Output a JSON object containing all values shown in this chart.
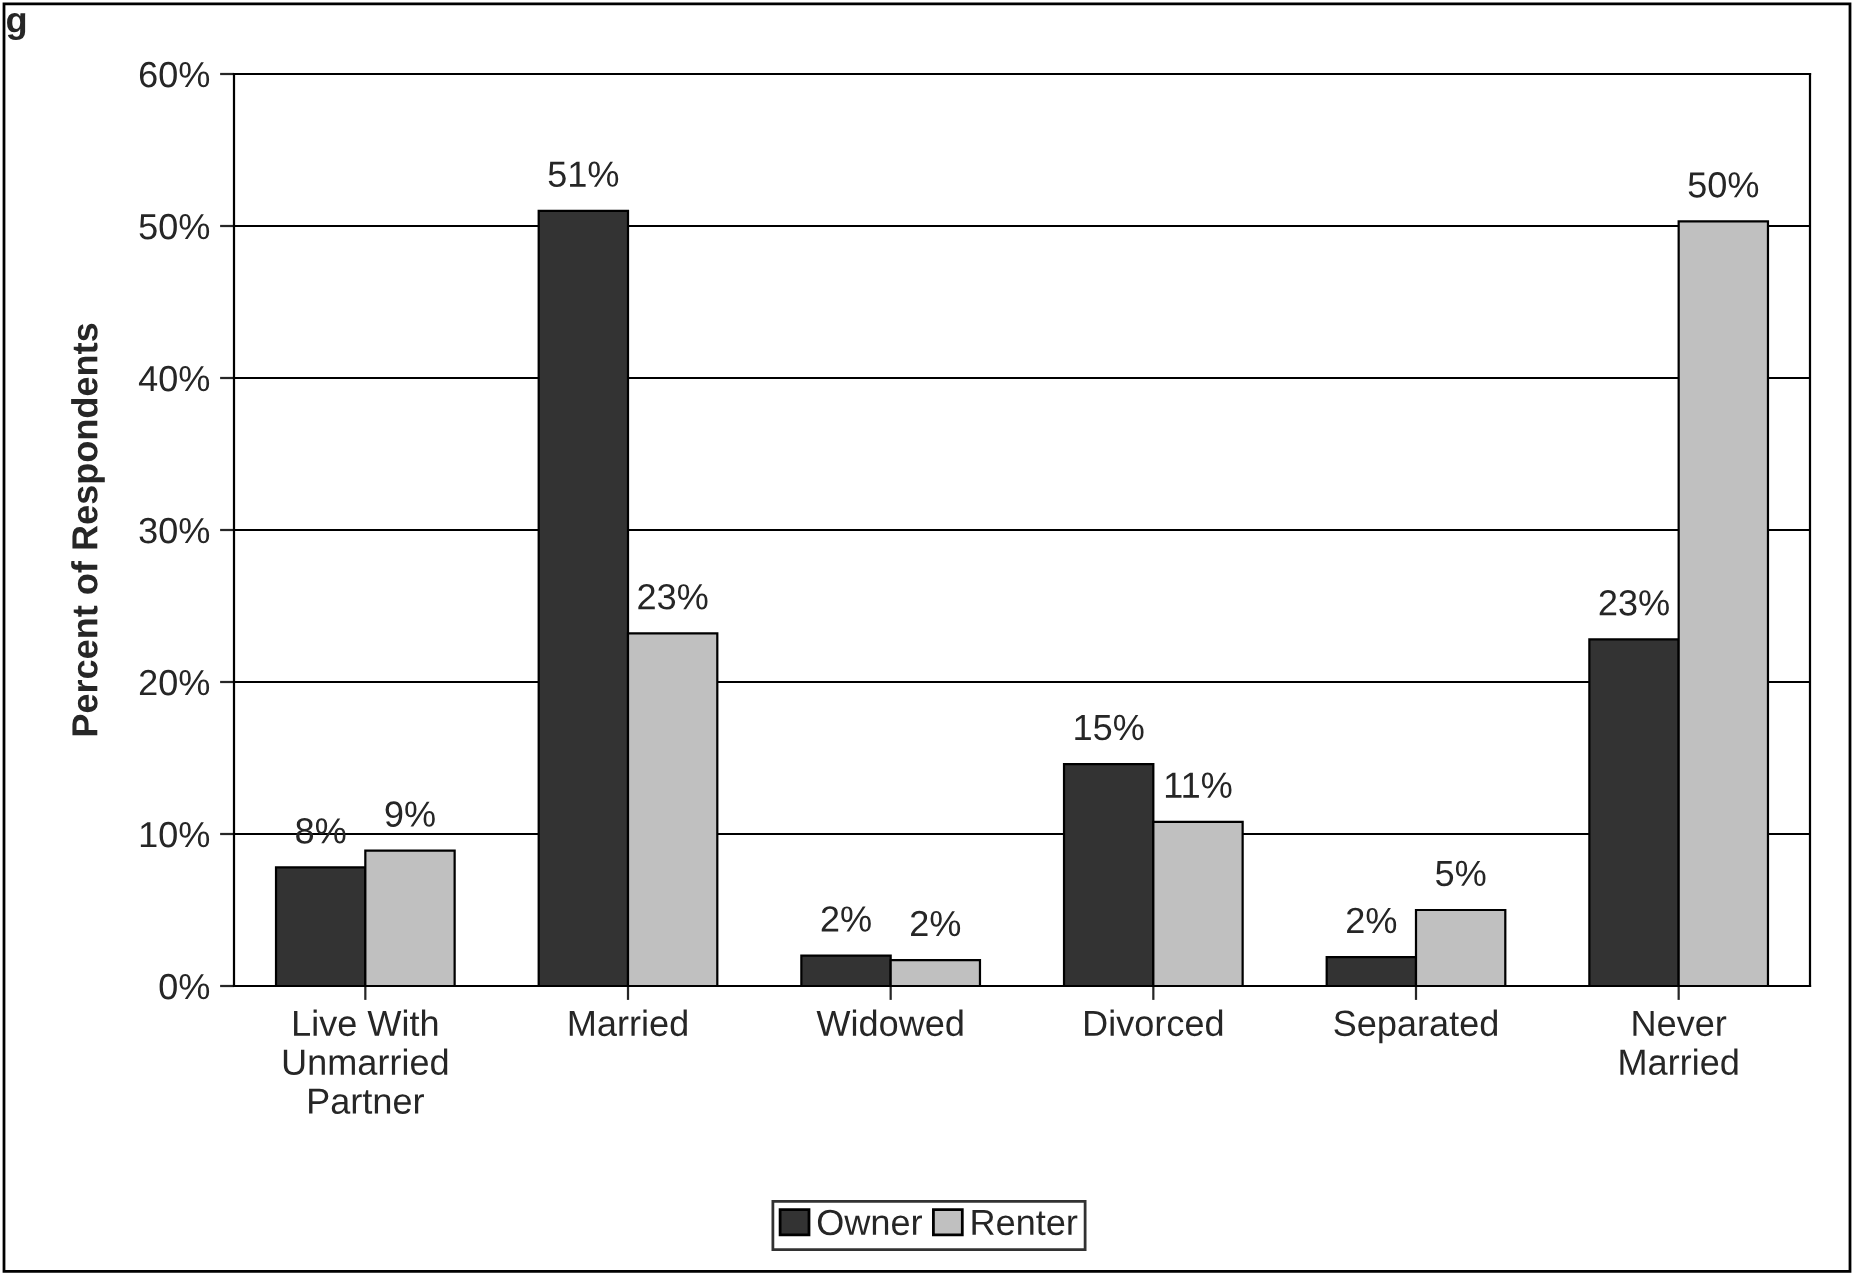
{
  "chart_data": {
    "type": "bar",
    "ylabel": "Percent of Respondents",
    "categories": [
      "Live With\nUnmarried\nPartner",
      "Married",
      "Widowed",
      "Divorced",
      "Separated",
      "Never\nMarried"
    ],
    "series": [
      {
        "name": "Owner",
        "color": "#333333",
        "values": [
          7.8,
          51.0,
          2.0,
          14.6,
          1.9,
          22.8
        ],
        "value_labels": [
          "8%",
          "51%",
          "2%",
          "15%",
          "2%",
          "23%"
        ]
      },
      {
        "name": "Renter",
        "color": "#c0c0c0",
        "values": [
          8.9,
          23.2,
          1.7,
          10.8,
          5.0,
          50.3
        ],
        "value_labels": [
          "9%",
          "23%",
          "2%",
          "11%",
          "5%",
          "50%"
        ]
      }
    ],
    "ylim": [
      0,
      60
    ],
    "yticks": [
      {
        "value": 0,
        "label": "0%"
      },
      {
        "value": 10,
        "label": "10%"
      },
      {
        "value": 20,
        "label": "20%"
      },
      {
        "value": 30,
        "label": "30%"
      },
      {
        "value": 40,
        "label": "40%"
      },
      {
        "value": 50,
        "label": "50%"
      },
      {
        "value": 60,
        "label": "60%"
      }
    ],
    "grid": "y",
    "legend": "bottom",
    "annotations": [
      "g"
    ]
  }
}
